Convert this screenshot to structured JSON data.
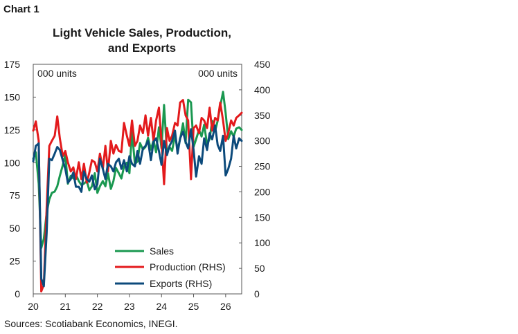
{
  "chart_label": "Chart 1",
  "source_note": "Sources: Scotiabank Economics, INEGI.",
  "chart_data": {
    "type": "line",
    "title_lines": [
      "Light Vehicle Sales, Production,",
      "and Exports"
    ],
    "left_unit": "000 units",
    "right_unit": "000 units",
    "xlim": [
      2020,
      2026.5
    ],
    "ylim_left": [
      0,
      175
    ],
    "ylim_right": [
      0,
      450
    ],
    "x_ticks": [
      {
        "value": 2020,
        "label": "20"
      },
      {
        "value": 2021,
        "label": "21"
      },
      {
        "value": 2022,
        "label": "22"
      },
      {
        "value": 2023,
        "label": "23"
      },
      {
        "value": 2024,
        "label": "24"
      },
      {
        "value": 2025,
        "label": "25"
      },
      {
        "value": 2026,
        "label": "26"
      }
    ],
    "left_ticks": [
      "0",
      "25",
      "50",
      "75",
      "100",
      "125",
      "150",
      "175"
    ],
    "right_ticks": [
      "0",
      "50",
      "100",
      "150",
      "200",
      "250",
      "300",
      "350",
      "400",
      "450"
    ],
    "grid": false,
    "legend_position": "bottom-center",
    "series": [
      {
        "name": "Sales",
        "axis": "left",
        "color": "#1a9850",
        "x": [
          2020.0,
          2020.08,
          2020.17,
          2020.25,
          2020.33,
          2020.42,
          2020.5,
          2020.58,
          2020.67,
          2020.75,
          2020.83,
          2020.92,
          2021.0,
          2021.08,
          2021.17,
          2021.25,
          2021.33,
          2021.42,
          2021.5,
          2021.58,
          2021.67,
          2021.75,
          2021.83,
          2021.92,
          2022.0,
          2022.08,
          2022.17,
          2022.25,
          2022.33,
          2022.42,
          2022.5,
          2022.58,
          2022.67,
          2022.75,
          2022.83,
          2022.92,
          2023.0,
          2023.08,
          2023.17,
          2023.25,
          2023.33,
          2023.42,
          2023.5,
          2023.58,
          2023.67,
          2023.75,
          2023.83,
          2023.92,
          2024.0,
          2024.08,
          2024.17,
          2024.25,
          2024.33,
          2024.42,
          2024.5,
          2024.58,
          2024.67,
          2024.75,
          2024.83,
          2024.92,
          2025.0,
          2025.08,
          2025.17,
          2025.25,
          2025.33,
          2025.42,
          2025.5,
          2025.58,
          2025.67,
          2025.75,
          2025.83,
          2025.92,
          2026.0,
          2026.08,
          2026.17,
          2026.25,
          2026.33,
          2026.42,
          2026.5
        ],
        "values": [
          103,
          108,
          84,
          35,
          42,
          62,
          72,
          77,
          78,
          82,
          90,
          98,
          106,
          84,
          90,
          88,
          91,
          86,
          83,
          84,
          86,
          79,
          82,
          92,
          77,
          82,
          86,
          82,
          92,
          80,
          86,
          96,
          92,
          88,
          97,
          100,
          92,
          124,
          99,
          101,
          115,
          110,
          112,
          119,
          110,
          117,
          108,
          127,
          111,
          144,
          108,
          112,
          109,
          121,
          110,
          118,
          130,
          115,
          148,
          146,
          112,
          118,
          125,
          120,
          129,
          114,
          118,
          132,
          124,
          132,
          143,
          154,
          138,
          118,
          124,
          120,
          126,
          127,
          125
        ]
      },
      {
        "name": "Production (RHS)",
        "axis": "right",
        "color": "#e31a1c",
        "x": [
          2020.0,
          2020.08,
          2020.17,
          2020.25,
          2020.33,
          2020.42,
          2020.5,
          2020.58,
          2020.67,
          2020.75,
          2020.83,
          2020.92,
          2021.0,
          2021.08,
          2021.17,
          2021.25,
          2021.33,
          2021.42,
          2021.5,
          2021.58,
          2021.67,
          2021.75,
          2021.83,
          2021.92,
          2022.0,
          2022.08,
          2022.17,
          2022.25,
          2022.33,
          2022.42,
          2022.5,
          2022.58,
          2022.67,
          2022.75,
          2022.83,
          2022.92,
          2023.0,
          2023.08,
          2023.17,
          2023.25,
          2023.33,
          2023.42,
          2023.5,
          2023.58,
          2023.67,
          2023.75,
          2023.83,
          2023.92,
          2024.0,
          2024.08,
          2024.17,
          2024.25,
          2024.33,
          2024.42,
          2024.5,
          2024.58,
          2024.67,
          2024.75,
          2024.83,
          2024.92,
          2025.0,
          2025.08,
          2025.17,
          2025.25,
          2025.33,
          2025.42,
          2025.5,
          2025.58,
          2025.67,
          2025.75,
          2025.83,
          2025.92,
          2026.0,
          2026.08,
          2026.17,
          2026.25,
          2026.33,
          2026.42,
          2026.5
        ],
        "values": [
          320,
          338,
          300,
          5,
          18,
          170,
          290,
          300,
          310,
          348,
          305,
          270,
          280,
          258,
          240,
          248,
          225,
          258,
          225,
          255,
          218,
          238,
          262,
          258,
          240,
          275,
          245,
          290,
          240,
          300,
          275,
          292,
          280,
          278,
          335,
          310,
          290,
          340,
          290,
          300,
          330,
          315,
          350,
          310,
          345,
          300,
          340,
          365,
          300,
          215,
          325,
          300,
          310,
          335,
          330,
          375,
          380,
          350,
          340,
          225,
          325,
          330,
          315,
          345,
          340,
          325,
          365,
          320,
          345,
          340,
          375,
          340,
          300,
          315,
          340,
          330,
          345,
          350,
          355
        ]
      },
      {
        "name": "Exports (RHS)",
        "axis": "right",
        "color": "#0c4a7b",
        "x": [
          2020.0,
          2020.08,
          2020.17,
          2020.25,
          2020.33,
          2020.42,
          2020.5,
          2020.58,
          2020.67,
          2020.75,
          2020.83,
          2020.92,
          2021.0,
          2021.08,
          2021.17,
          2021.25,
          2021.33,
          2021.42,
          2021.5,
          2021.58,
          2021.67,
          2021.75,
          2021.83,
          2021.92,
          2022.0,
          2022.08,
          2022.17,
          2022.25,
          2022.33,
          2022.42,
          2022.5,
          2022.58,
          2022.67,
          2022.75,
          2022.83,
          2022.92,
          2023.0,
          2023.08,
          2023.17,
          2023.25,
          2023.33,
          2023.42,
          2023.5,
          2023.58,
          2023.67,
          2023.75,
          2023.83,
          2023.92,
          2024.0,
          2024.08,
          2024.17,
          2024.25,
          2024.33,
          2024.42,
          2024.5,
          2024.58,
          2024.67,
          2024.75,
          2024.83,
          2024.92,
          2025.0,
          2025.08,
          2025.17,
          2025.25,
          2025.33,
          2025.42,
          2025.5,
          2025.58,
          2025.67,
          2025.75,
          2025.83,
          2025.92,
          2026.0,
          2026.08,
          2026.17,
          2026.25,
          2026.33,
          2026.42,
          2026.5
        ],
        "values": [
          260,
          290,
          295,
          30,
          15,
          120,
          265,
          262,
          275,
          288,
          282,
          262,
          245,
          218,
          225,
          238,
          210,
          210,
          200,
          240,
          225,
          220,
          232,
          205,
          215,
          265,
          245,
          225,
          255,
          250,
          240,
          258,
          265,
          245,
          262,
          240,
          270,
          255,
          250,
          280,
          255,
          285,
          290,
          300,
          262,
          298,
          305,
          280,
          253,
          300,
          272,
          290,
          300,
          320,
          275,
          305,
          318,
          298,
          285,
          323,
          283,
          230,
          270,
          255,
          305,
          282,
          315,
          303,
          330,
          292,
          280,
          310,
          232,
          245,
          265,
          310,
          285,
          305,
          300
        ]
      }
    ]
  }
}
